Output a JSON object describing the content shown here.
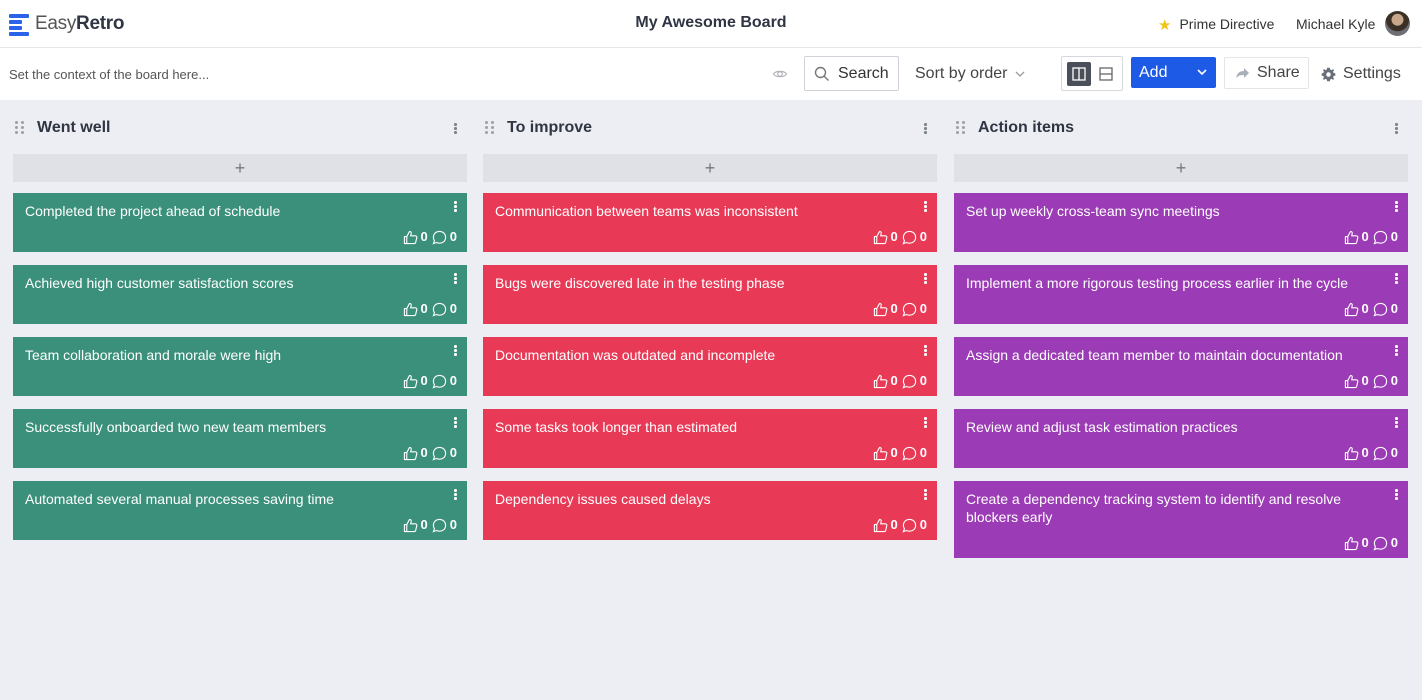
{
  "app": {
    "logo_light": "Easy",
    "logo_bold": "Retro"
  },
  "header": {
    "board_title": "My Awesome Board",
    "prime_directive": "Prime Directive",
    "user_name": "Michael Kyle"
  },
  "toolbar": {
    "context_placeholder": "Set the context of the board here...",
    "search_label": "Search",
    "sort_label": "Sort by order",
    "add_label": "Add",
    "share_label": "Share",
    "settings_label": "Settings"
  },
  "colors": {
    "went_well": "#3a907a",
    "to_improve": "#e83a56",
    "action_items": "#9b3bb5",
    "accent": "#1d5ae6"
  },
  "columns": [
    {
      "title": "Went well",
      "cards": [
        {
          "text": "Completed the project ahead of schedule",
          "likes": "0",
          "comments": "0"
        },
        {
          "text": "Achieved high customer satisfaction scores",
          "likes": "0",
          "comments": "0"
        },
        {
          "text": "Team collaboration and morale were high",
          "likes": "0",
          "comments": "0"
        },
        {
          "text": "Successfully onboarded two new team members",
          "likes": "0",
          "comments": "0"
        },
        {
          "text": "Automated several manual processes saving time",
          "likes": "0",
          "comments": "0"
        }
      ]
    },
    {
      "title": "To improve",
      "cards": [
        {
          "text": "Communication between teams was inconsistent",
          "likes": "0",
          "comments": "0"
        },
        {
          "text": "Bugs were discovered late in the testing phase",
          "likes": "0",
          "comments": "0"
        },
        {
          "text": "Documentation was outdated and incomplete",
          "likes": "0",
          "comments": "0"
        },
        {
          "text": "Some tasks took longer than estimated",
          "likes": "0",
          "comments": "0"
        },
        {
          "text": "Dependency issues caused delays",
          "likes": "0",
          "comments": "0"
        }
      ]
    },
    {
      "title": "Action items",
      "cards": [
        {
          "text": "Set up weekly cross-team sync meetings",
          "likes": "0",
          "comments": "0"
        },
        {
          "text": "Implement a more rigorous testing process earlier in the cycle",
          "likes": "0",
          "comments": "0"
        },
        {
          "text": "Assign a dedicated team member to maintain documentation",
          "likes": "0",
          "comments": "0"
        },
        {
          "text": "Review and adjust task estimation practices",
          "likes": "0",
          "comments": "0"
        },
        {
          "text": "Create a dependency tracking system to identify and resolve blockers early",
          "likes": "0",
          "comments": "0"
        }
      ]
    }
  ]
}
